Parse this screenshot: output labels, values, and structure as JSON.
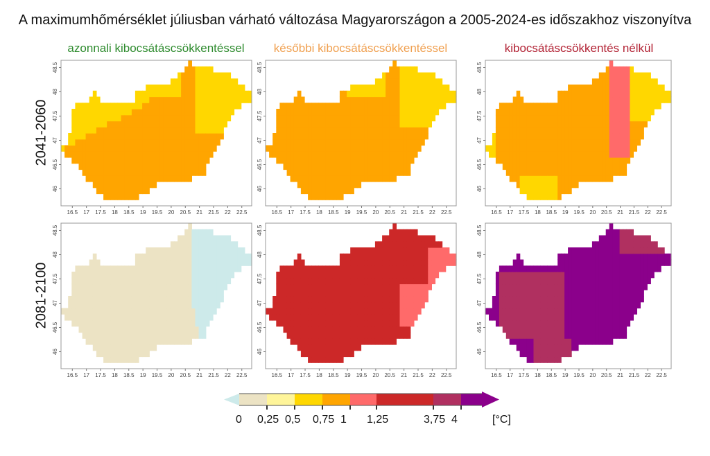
{
  "title": "A maximumhőmérséklet júliusban várható változása Magyarországon a 2005-2024-es időszakhoz viszonyítva",
  "columns": [
    {
      "label": "azonnali kibocsátáscsökkentéssel",
      "color": "#2e8b2e"
    },
    {
      "label": "későbbi kibocsátáscsökkentéssel",
      "color": "#f0a050"
    },
    {
      "label": "kibocsátáscsökkentés nélkül",
      "color": "#b22234"
    }
  ],
  "rows": [
    {
      "label": "2041-2060"
    },
    {
      "label": "2081-2100"
    }
  ],
  "axes": {
    "x_ticks": [
      "16.5",
      "17",
      "17.5",
      "18",
      "18.5",
      "19",
      "19.5",
      "20",
      "20.5",
      "21",
      "21.5",
      "22",
      "22.5"
    ],
    "y_ticks": [
      "46",
      "46.5",
      "47",
      "47.5",
      "48",
      "48.5"
    ]
  },
  "legend": {
    "colors": [
      "#cdeaea",
      "#ece3c4",
      "#fff59a",
      "#ffd700",
      "#ffa500",
      "#ff6a6a",
      "#cc2828",
      "#b03060",
      "#8b008b"
    ],
    "labels": [
      "0",
      "0,25",
      "0,5",
      "0,75",
      "1",
      "1,25",
      "3,75",
      "4"
    ],
    "unit": "[°C]"
  }
}
